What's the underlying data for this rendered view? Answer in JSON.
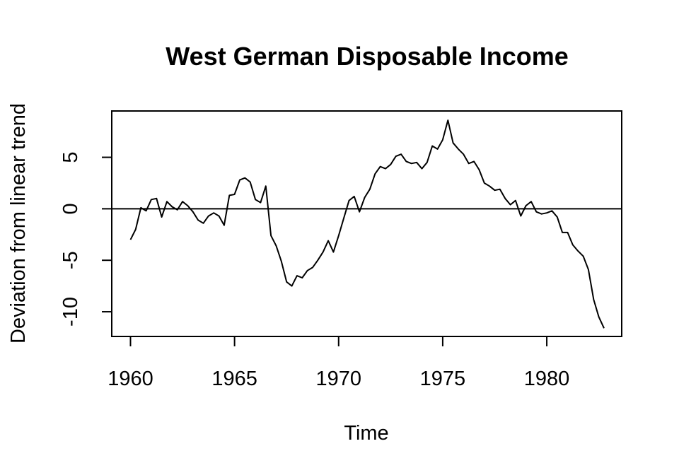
{
  "chart_data": {
    "type": "line",
    "title": "West German Disposable Income",
    "xlabel": "Time",
    "ylabel": "Deviation from linear trend",
    "xlim": [
      1959.1,
      1983.6
    ],
    "ylim": [
      -12.4,
      9.5
    ],
    "x_ticks": [
      1960,
      1965,
      1970,
      1975,
      1980
    ],
    "y_ticks": [
      -10,
      -5,
      0,
      5
    ],
    "reference_line": {
      "y": 0
    },
    "grid": false,
    "legend": "none",
    "line_color": "#000000",
    "series": [
      {
        "start": 1960.0,
        "frequency": 4,
        "values": [
          -3.0,
          -2.0,
          0.1,
          -0.2,
          0.9,
          1.0,
          -0.8,
          0.7,
          0.2,
          -0.1,
          0.7,
          0.3,
          -0.3,
          -1.1,
          -1.4,
          -0.7,
          -0.4,
          -0.7,
          -1.6,
          1.3,
          1.4,
          2.8,
          3.0,
          2.6,
          0.9,
          0.6,
          2.2,
          -2.6,
          -3.6,
          -5.1,
          -7.1,
          -7.5,
          -6.5,
          -6.7,
          -6.0,
          -5.7,
          -5.0,
          -4.2,
          -3.1,
          -4.2,
          -2.6,
          -0.9,
          0.8,
          1.2,
          -0.3,
          1.1,
          1.9,
          3.4,
          4.1,
          3.9,
          4.3,
          5.1,
          5.3,
          4.6,
          4.4,
          4.5,
          3.9,
          4.5,
          6.1,
          5.8,
          6.7,
          8.6,
          6.4,
          5.8,
          5.3,
          4.4,
          4.6,
          3.8,
          2.5,
          2.2,
          1.8,
          1.9,
          1.0,
          0.4,
          0.8,
          -0.7,
          0.3,
          0.7,
          -0.3,
          -0.5,
          -0.4,
          -0.2,
          -0.8,
          -2.3,
          -2.3,
          -3.5,
          -4.1,
          -4.6,
          -5.9,
          -8.8,
          -10.5,
          -11.6
        ]
      }
    ]
  }
}
